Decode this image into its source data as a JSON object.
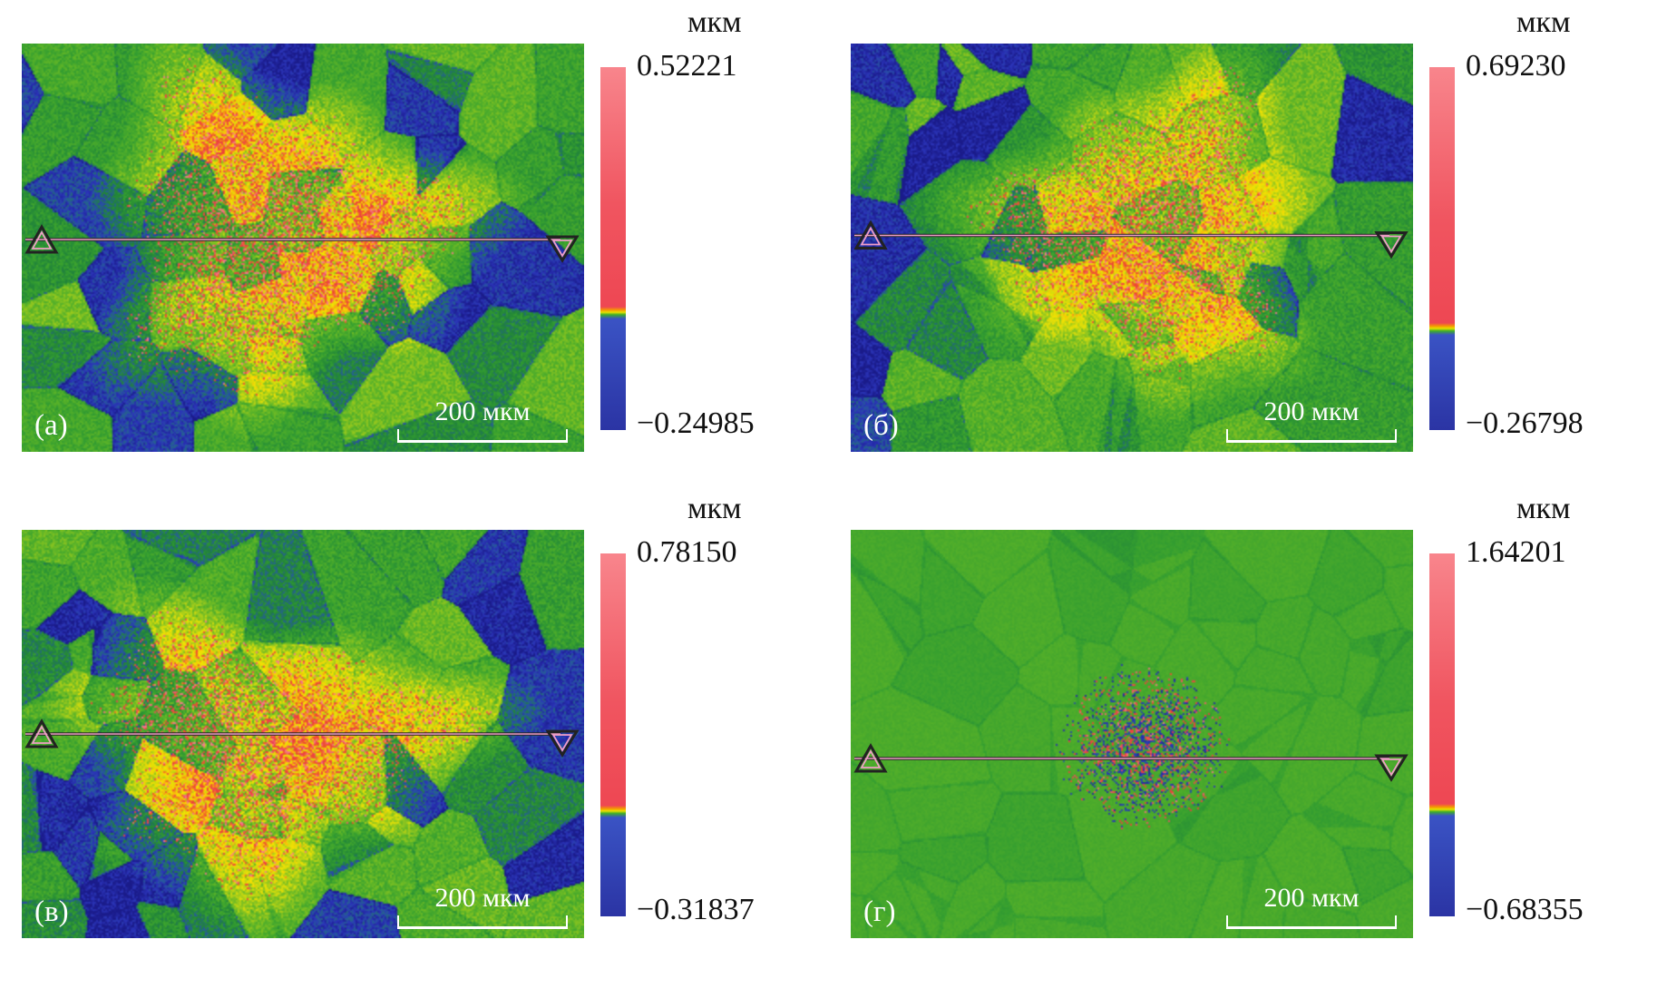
{
  "panels": [
    {
      "id": "a",
      "label": "(а)",
      "unit": "мкм",
      "max": "0.52221",
      "min": "−0.24985",
      "max_value": 0.52221,
      "min_value": -0.24985,
      "scale_bar": "200 мкм"
    },
    {
      "id": "b",
      "label": "(б)",
      "unit": "мкм",
      "max": "0.69230",
      "min": "−0.26798",
      "max_value": 0.6923,
      "min_value": -0.26798,
      "scale_bar": "200 мкм"
    },
    {
      "id": "v",
      "label": "(в)",
      "unit": "мкм",
      "max": "0.78150",
      "min": "−0.31837",
      "max_value": 0.7815,
      "min_value": -0.31837,
      "scale_bar": "200 мкм"
    },
    {
      "id": "g",
      "label": "(г)",
      "unit": "мкм",
      "max": "1.64201",
      "min": "−0.68355",
      "max_value": 1.64201,
      "min_value": -0.68355,
      "scale_bar": "200 мкм"
    }
  ],
  "chart_data": [
    {
      "type": "heatmap",
      "label": "(а)",
      "zlabel": "мкм",
      "zmin": -0.24985,
      "zmax": 0.52221,
      "scale_bar": "200 мкм",
      "colormap": "blue-green-yellow-red",
      "palette": [
        "#1a1b8a",
        "#34a030",
        "#f0e000",
        "#ee4035",
        "#f67a8c"
      ],
      "description": "Surface height map: green polycrystalline grain background with dark-blue low grains and a central raised yellow/red irradiated zone; horizontal profile line with triangle markers."
    },
    {
      "type": "heatmap",
      "label": "(б)",
      "zlabel": "мкм",
      "zmin": -0.26798,
      "zmax": 0.6923,
      "scale_bar": "200 мкм",
      "colormap": "blue-green-yellow-red",
      "palette": [
        "#1a1b8a",
        "#34a030",
        "#f0e000",
        "#ee4035",
        "#f67a8c"
      ],
      "description": "Surface height map: green grain background, central yellow/red raised zone slightly right of center; horizontal profile line with triangle markers."
    },
    {
      "type": "heatmap",
      "label": "(в)",
      "zlabel": "мкм",
      "zmin": -0.31837,
      "zmax": 0.7815,
      "scale_bar": "200 мкм",
      "colormap": "blue-green-yellow-red",
      "palette": [
        "#1a1b8a",
        "#34a030",
        "#f0e000",
        "#ee4035",
        "#f67a8c"
      ],
      "description": "Surface height map: green grain background with broad central yellow/red raised zone; horizontal profile line with triangle markers."
    },
    {
      "type": "heatmap",
      "label": "(г)",
      "zlabel": "мкм",
      "zmin": -0.68355,
      "zmax": 1.64201,
      "scale_bar": "200 мкм",
      "colormap": "blue-green-yellow-red",
      "palette": [
        "#1a1b8a",
        "#34a030",
        "#f0e000",
        "#ee4035",
        "#f67a8c"
      ],
      "description": "Nearly uniform green height map with faint grain outlines and a small central speckled blue/red damage region; horizontal profile line with triangle markers."
    }
  ]
}
